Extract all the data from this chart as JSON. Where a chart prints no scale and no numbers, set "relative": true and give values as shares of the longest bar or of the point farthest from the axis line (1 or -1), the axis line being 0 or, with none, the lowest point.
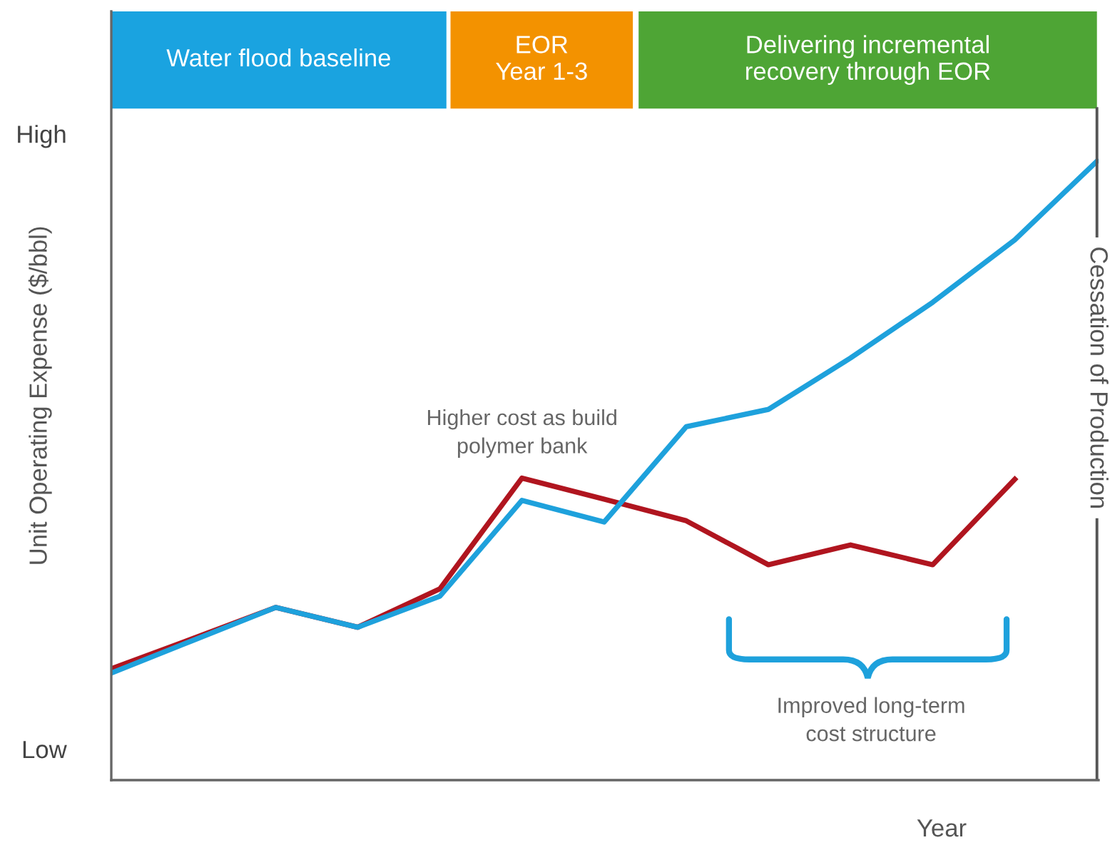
{
  "chart_data": {
    "type": "line",
    "relative": true,
    "categories": [
      null,
      null,
      null,
      null,
      null,
      null,
      null,
      null,
      null,
      null,
      null,
      null,
      null
    ],
    "series": [
      {
        "color": "#b0151f",
        "values": [
          0.18,
          0.229,
          0.279,
          0.247,
          0.309,
          0.488,
          0.454,
          0.419,
          0.348,
          0.38,
          0.348,
          0.486,
          null
        ]
      },
      {
        "color": "#1ea1dc",
        "values": [
          0.173,
          0.226,
          0.279,
          0.247,
          0.297,
          0.452,
          0.417,
          0.571,
          0.599,
          0.682,
          0.772,
          0.873,
          1.0
        ]
      }
    ],
    "ylabel": "Unit Operating Expense ($/bbl)",
    "xlabel": "Year",
    "annotations": [
      "High",
      "Low",
      "Higher cost as build\npolymer bank",
      "Improved long-term\ncost structure",
      "Water flood baseline",
      "EOR\nYear 1-3",
      "Delivering incremental\nrecovery through EOR",
      "Cessation of Production"
    ],
    "marker": "none",
    "line_style": "solid",
    "grid": false,
    "legend": false
  }
}
